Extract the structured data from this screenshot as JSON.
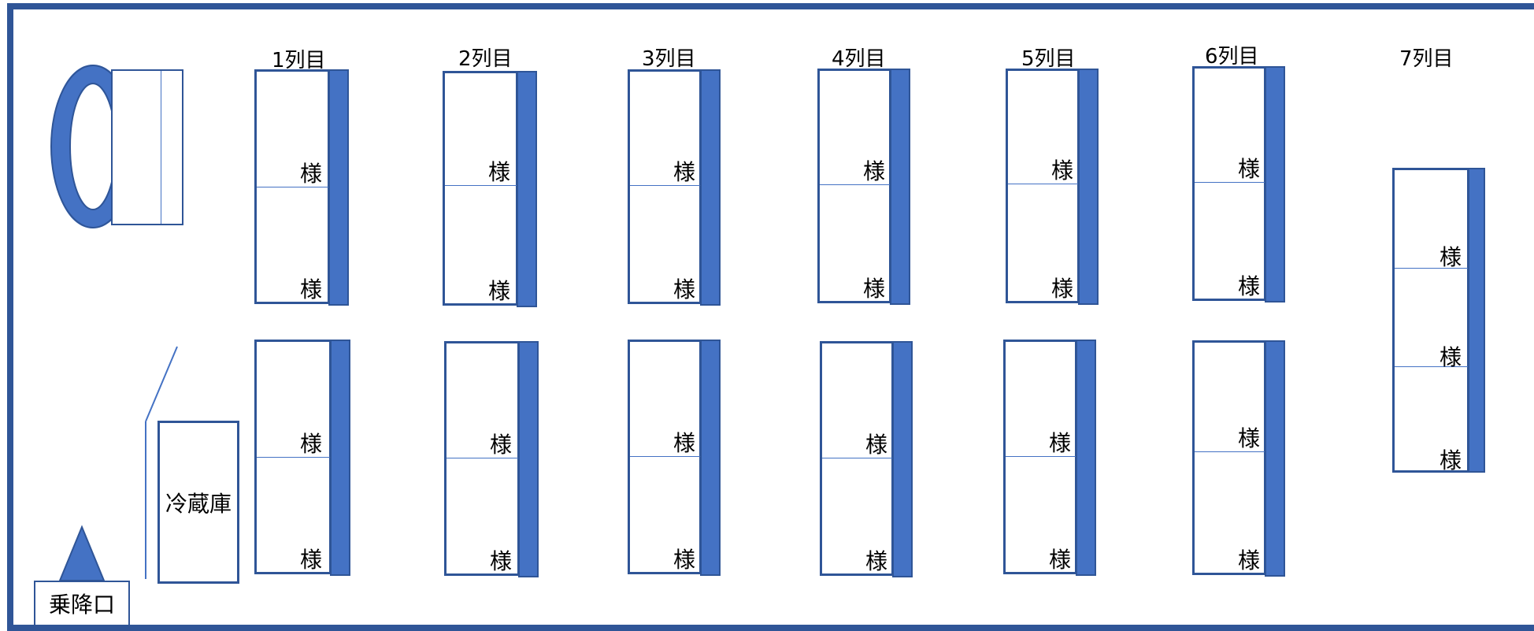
{
  "colors": {
    "frame": "#2f5597",
    "seat_back": "#4472c4",
    "line": "#4472c4",
    "text": "#000000"
  },
  "icons": {
    "steering_wheel": "steering-wheel-icon",
    "entrance_arrow": "triangle-up-icon"
  },
  "rows": [
    {
      "label": "1列目"
    },
    {
      "label": "2列目"
    },
    {
      "label": "3列目"
    },
    {
      "label": "4列目"
    },
    {
      "label": "5列目"
    },
    {
      "label": "6列目"
    },
    {
      "label": "7列目"
    }
  ],
  "seat_suffix": "様",
  "fridge_label": "冷蔵庫",
  "entrance_label": "乗降口"
}
